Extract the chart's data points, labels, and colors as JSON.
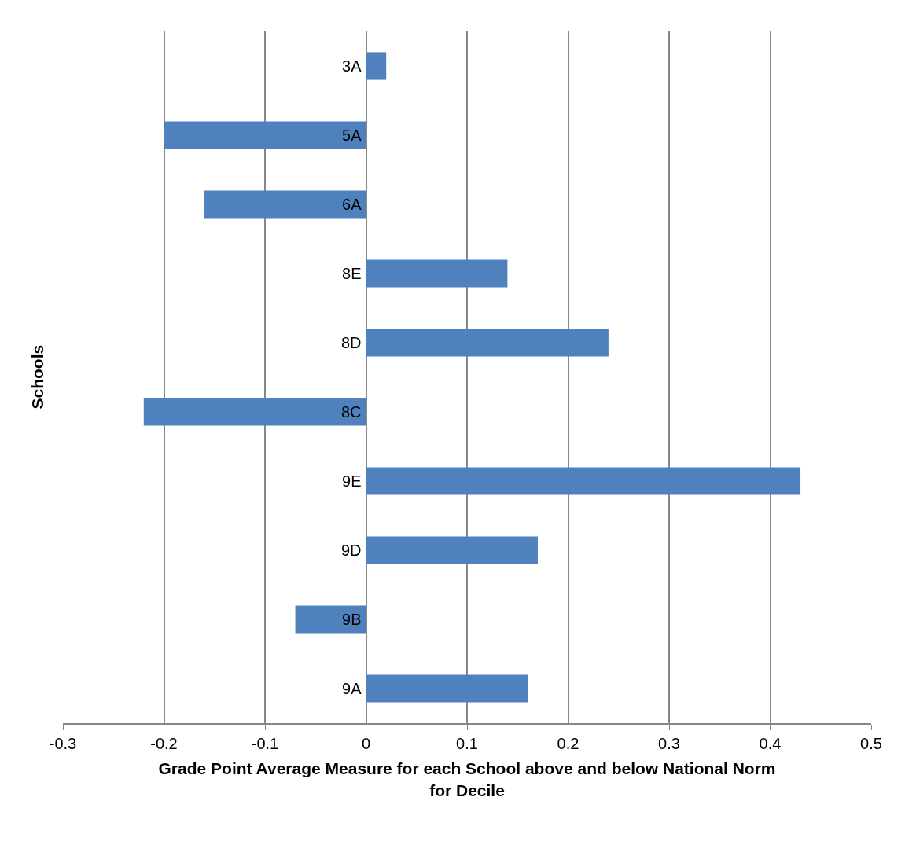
{
  "chart_data": {
    "type": "bar",
    "orientation": "horizontal",
    "xlabel": "Grade Point Average Measure for each School above and below National Norm for Decile",
    "ylabel": "Schools",
    "categories": [
      "3A",
      "5A",
      "6A",
      "8E",
      "8D",
      "8C",
      "9E",
      "9D",
      "9B",
      "9A"
    ],
    "values": [
      0.02,
      -0.2,
      -0.16,
      0.14,
      0.24,
      -0.22,
      0.43,
      0.17,
      -0.07,
      0.16
    ],
    "color": "#4f81bd",
    "xlim": [
      -0.3,
      0.5
    ],
    "xticks": [
      -0.3,
      -0.2,
      -0.1,
      0,
      0.1,
      0.2,
      0.3,
      0.4,
      0.5
    ],
    "grid": "x"
  }
}
